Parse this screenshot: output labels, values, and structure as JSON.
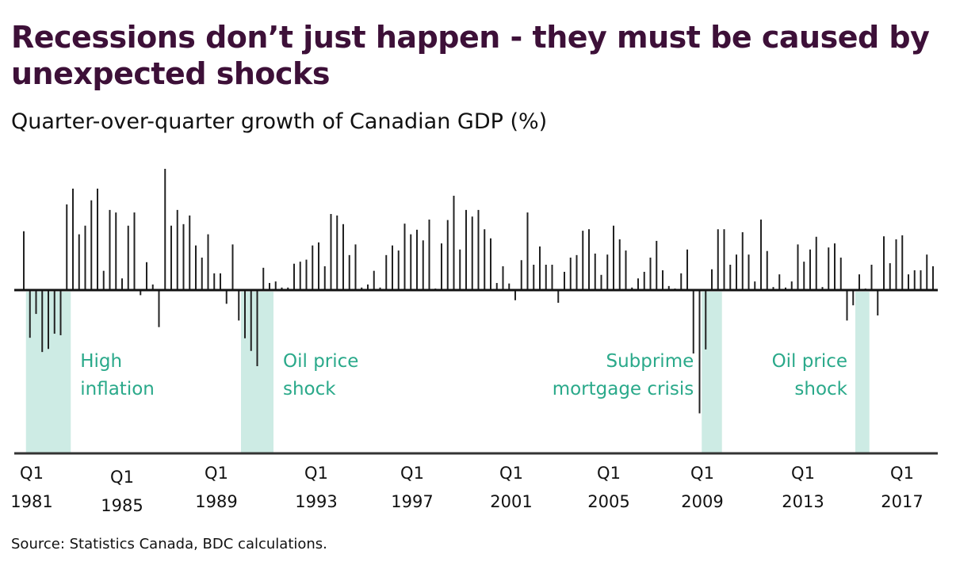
{
  "chart_data": {
    "type": "bar",
    "title": "Recessions don’t just happen - they must be caused by unexpected shocks",
    "subtitle": "Quarter-over-quarter growth of Canadian GDP (%)",
    "xlabel": "",
    "ylabel": "",
    "x_start": "1981 Q1",
    "frequency": "quarterly",
    "values_note": "Heights are estimated from pixel measurements. The sequence slightly undercounts the quarters shown, so bars are spread evenly across the axis and individual values are not pinned to exact quarters.",
    "ylim": [
      -2.6,
      2.5
    ],
    "grid": false,
    "x_tick_labels": [
      {
        "top": "Q1",
        "bottom": "1981"
      },
      {
        "top": "Q1",
        "bottom": "1985"
      },
      {
        "top": "Q1",
        "bottom": "1989"
      },
      {
        "top": "Q1",
        "bottom": "1993"
      },
      {
        "top": "Q1",
        "bottom": "1997"
      },
      {
        "top": "Q1",
        "bottom": "2001"
      },
      {
        "top": "Q1",
        "bottom": "2005"
      },
      {
        "top": "Q1",
        "bottom": "2009"
      },
      {
        "top": "Q1",
        "bottom": "2013"
      },
      {
        "top": "Q1",
        "bottom": "2017"
      }
    ],
    "values": [
      1.16,
      -0.94,
      -0.47,
      -1.22,
      -1.16,
      -0.86,
      -0.89,
      1.69,
      2.0,
      1.1,
      1.27,
      1.77,
      2.0,
      0.38,
      1.58,
      1.53,
      0.23,
      1.27,
      1.53,
      -0.1,
      0.55,
      0.11,
      -0.73,
      2.39,
      1.27,
      1.58,
      1.3,
      1.47,
      0.88,
      0.64,
      1.1,
      0.33,
      0.33,
      -0.27,
      0.9,
      -0.6,
      -0.95,
      -1.2,
      -1.5,
      0.44,
      0.14,
      0.17,
      0.05,
      0.05,
      0.52,
      0.56,
      0.6,
      0.88,
      0.94,
      0.47,
      1.5,
      1.47,
      1.3,
      0.69,
      0.9,
      0.05,
      0.11,
      0.38,
      0.05,
      0.69,
      0.88,
      0.78,
      1.31,
      1.1,
      1.19,
      0.98,
      1.39,
      0.03,
      0.92,
      1.38,
      1.86,
      0.8,
      1.58,
      1.45,
      1.58,
      1.2,
      1.02,
      0.14,
      0.47,
      0.13,
      -0.2,
      0.59,
      1.53,
      0.5,
      0.86,
      0.5,
      0.5,
      -0.25,
      0.36,
      0.64,
      0.69,
      1.17,
      1.2,
      0.72,
      0.3,
      0.7,
      1.27,
      1.0,
      0.78,
      0.05,
      0.23,
      0.36,
      0.64,
      0.97,
      0.39,
      0.08,
      0.03,
      0.33,
      0.8,
      -1.25,
      -2.43,
      -1.17,
      0.41,
      1.2,
      1.2,
      0.5,
      0.7,
      1.14,
      0.7,
      0.17,
      1.39,
      0.77,
      0.06,
      0.31,
      0.05,
      0.17,
      0.9,
      0.56,
      0.8,
      1.05,
      0.06,
      0.84,
      0.92,
      0.64,
      -0.6,
      -0.3,
      0.31,
      0.03,
      0.5,
      -0.5,
      1.06,
      0.53,
      1.0,
      1.08,
      0.31,
      0.39,
      0.39,
      0.7,
      0.47
    ],
    "shaded_periods": [
      {
        "label_lines": [
          "High",
          "inflation"
        ],
        "start": "1981 Q2",
        "end": "1982 Q4",
        "align": "left"
      },
      {
        "label_lines": [
          "Oil price",
          "shock"
        ],
        "start": "1990 Q1",
        "end": "1991 Q1",
        "align": "left"
      },
      {
        "label_lines": [
          "Subprime",
          "mortgage crisis"
        ],
        "start": "2008 Q4",
        "end": "2009 Q2",
        "align": "right"
      },
      {
        "label_lines": [
          "Oil price",
          "shock"
        ],
        "start": "2015 Q1",
        "end": "2015 Q2",
        "align": "right"
      }
    ],
    "colors": {
      "bar": "#222222",
      "shade": "#cdebe4",
      "annotation": "#2aa98a",
      "title": "#3d1038"
    }
  },
  "source": "Source: Statistics Canada, BDC calculations."
}
